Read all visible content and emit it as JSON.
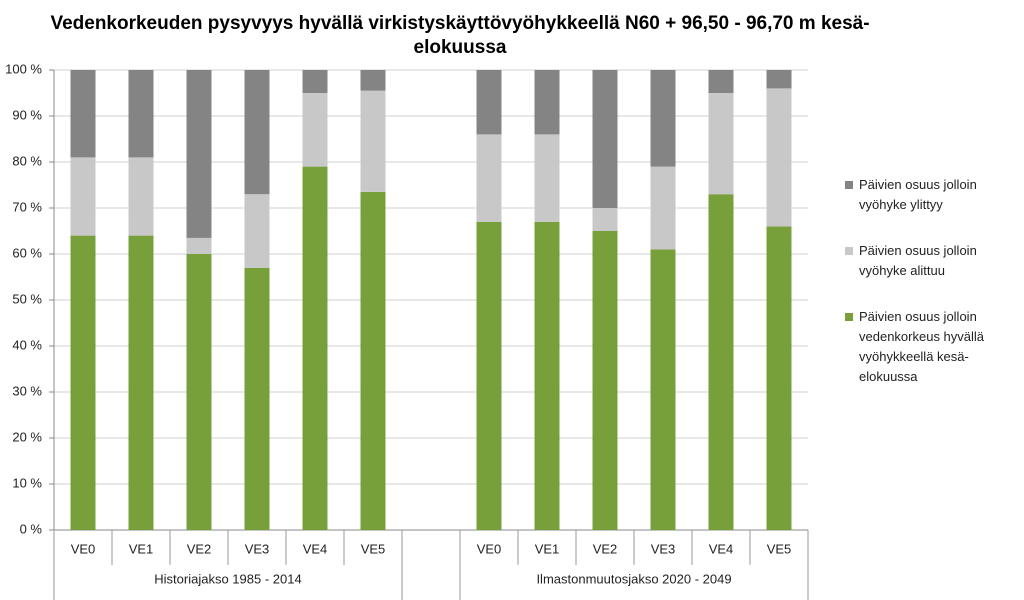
{
  "chart_data": {
    "type": "stacked_bar_100",
    "title": "Vedenkorkeuden pysyvyys hyvällä virkistyskäyttövyöhykkeellä N60 + 96,50 - 96,70 m kesä-elokuussa",
    "categories": [
      "VE0",
      "VE1",
      "VE2",
      "VE3",
      "VE4",
      "VE5",
      null,
      "VE0",
      "VE1",
      "VE2",
      "VE3",
      "VE4",
      "VE5"
    ],
    "group_labels": [
      "Historiajakso 1985 - 2014",
      "Ilmastonmuutosjakso 2020 - 2049"
    ],
    "series": [
      {
        "name": "Päivien osuus jolloin vedenkorkeus hyvällä vyöhykkeellä kesä-elokuussa",
        "color": "#77a03b",
        "values": [
          64,
          64,
          60,
          57,
          79,
          73.5,
          null,
          67,
          67,
          65,
          61,
          73,
          66
        ]
      },
      {
        "name": "Päivien osuus jolloin vyöhyke alittuu",
        "color": "#c8c8c8",
        "values": [
          17,
          17,
          3.5,
          16,
          16,
          22,
          null,
          19,
          19,
          5,
          18,
          22,
          30
        ]
      },
      {
        "name": "Päivien osuus jolloin vyöhyke ylittyy",
        "color": "#848484",
        "values": [
          19,
          19,
          36.5,
          27,
          5,
          4.5,
          null,
          14,
          14,
          30,
          21,
          5,
          4
        ]
      }
    ],
    "ylim": [
      0,
      100
    ],
    "yticks": [
      {
        "value": 0,
        "label": "0 %"
      },
      {
        "value": 10,
        "label": "10 %"
      },
      {
        "value": 20,
        "label": "20 %"
      },
      {
        "value": 30,
        "label": "30 %"
      },
      {
        "value": 40,
        "label": "40 %"
      },
      {
        "value": 50,
        "label": "50 %"
      },
      {
        "value": 60,
        "label": "60 %"
      },
      {
        "value": 70,
        "label": "70 %"
      },
      {
        "value": 80,
        "label": "80 %"
      },
      {
        "value": 90,
        "label": "90 %"
      },
      {
        "value": 100,
        "label": "100 %"
      }
    ],
    "grid": true,
    "legend": "right"
  }
}
